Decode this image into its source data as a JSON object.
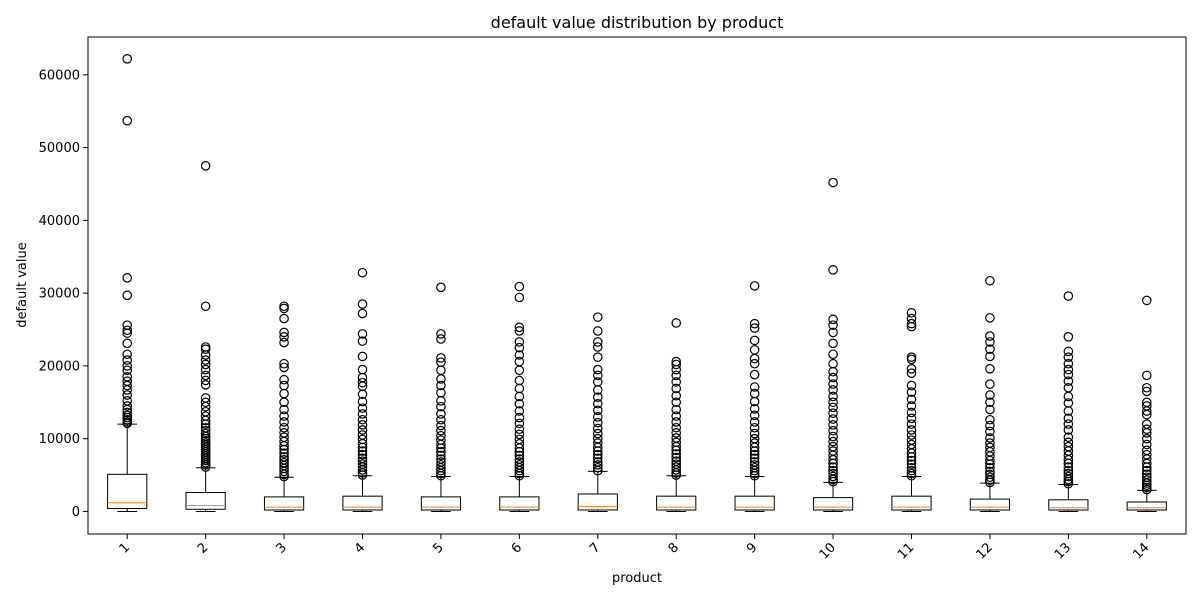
{
  "chart_data": {
    "type": "boxplot",
    "title": "default value distribution by product",
    "xlabel": "product",
    "ylabel": "default value",
    "ylim": [
      -3100,
      65200
    ],
    "yticks": [
      0,
      10000,
      20000,
      30000,
      40000,
      50000,
      60000
    ],
    "categories": [
      "1",
      "2",
      "3",
      "4",
      "5",
      "6",
      "7",
      "8",
      "9",
      "10",
      "11",
      "12",
      "13",
      "14"
    ],
    "colors": {
      "box": "#000000",
      "median": "#ff7f0e",
      "flier": "#000000"
    },
    "boxes": [
      {
        "category": "1",
        "min": 0,
        "q1": 400,
        "median": 1200,
        "q3": 5100,
        "max": 12000,
        "outliers": [
          12100,
          12300,
          12600,
          12900,
          13200,
          13600,
          14000,
          14500,
          15200,
          16000,
          16700,
          17300,
          17900,
          18500,
          19400,
          20000,
          20800,
          21600,
          23100,
          24500,
          24900,
          25600,
          29700,
          32100,
          53700,
          62200
        ]
      },
      {
        "category": "2",
        "min": 0,
        "q1": 300,
        "median": 800,
        "q3": 2600,
        "max": 6000,
        "outliers": [
          6100,
          6400,
          6700,
          7000,
          7300,
          7600,
          7900,
          8200,
          8500,
          8800,
          9100,
          9400,
          9700,
          10000,
          10300,
          10700,
          11100,
          11500,
          12000,
          12500,
          13100,
          13700,
          14400,
          15000,
          15600,
          17400,
          18000,
          18700,
          19500,
          20200,
          20800,
          21500,
          22300,
          22600,
          28200,
          47500
        ]
      },
      {
        "category": "3",
        "min": 0,
        "q1": 200,
        "median": 600,
        "q3": 2000,
        "max": 4700,
        "outliers": [
          4800,
          5100,
          5500,
          5900,
          6300,
          6700,
          7100,
          7500,
          8000,
          8500,
          9000,
          9600,
          10200,
          10800,
          11500,
          12300,
          13100,
          14000,
          15000,
          16200,
          17300,
          18100,
          19800,
          20300,
          23200,
          24000,
          24600,
          26500,
          27900,
          28200
        ]
      },
      {
        "category": "4",
        "min": 0,
        "q1": 200,
        "median": 600,
        "q3": 2100,
        "max": 4900,
        "outliers": [
          5000,
          5300,
          5700,
          6100,
          6500,
          6900,
          7300,
          7800,
          8300,
          8800,
          9300,
          9900,
          10500,
          11200,
          11900,
          12600,
          13400,
          14200,
          15100,
          16100,
          17200,
          17700,
          18400,
          19500,
          21300,
          23400,
          24400,
          27200,
          28500,
          32800
        ]
      },
      {
        "category": "5",
        "min": 0,
        "q1": 200,
        "median": 600,
        "q3": 2000,
        "max": 4800,
        "outliers": [
          4900,
          5200,
          5600,
          6000,
          6400,
          6800,
          7200,
          7700,
          8200,
          8700,
          9200,
          9800,
          10400,
          11100,
          11800,
          12600,
          13400,
          14400,
          15200,
          16300,
          17300,
          18200,
          19400,
          20500,
          21100,
          23700,
          24400,
          30800
        ]
      },
      {
        "category": "6",
        "min": 0,
        "q1": 200,
        "median": 600,
        "q3": 2000,
        "max": 4800,
        "outliers": [
          4900,
          5200,
          5600,
          6000,
          6400,
          6800,
          7200,
          7700,
          8200,
          8700,
          9300,
          9900,
          10600,
          11300,
          12100,
          12900,
          13800,
          14800,
          15800,
          16900,
          18000,
          19400,
          20600,
          21500,
          22500,
          23300,
          24800,
          25300,
          29400,
          30900
        ]
      },
      {
        "category": "7",
        "min": 0,
        "q1": 200,
        "median": 700,
        "q3": 2400,
        "max": 5500,
        "outliers": [
          5600,
          6000,
          6400,
          6800,
          7300,
          7800,
          8300,
          8800,
          9400,
          10000,
          10700,
          11400,
          12200,
          13000,
          13900,
          14800,
          15700,
          16700,
          17800,
          18700,
          19500,
          21200,
          22600,
          23300,
          24800,
          26700
        ]
      },
      {
        "category": "8",
        "min": 0,
        "q1": 200,
        "median": 600,
        "q3": 2100,
        "max": 4900,
        "outliers": [
          5000,
          5300,
          5700,
          6100,
          6500,
          6900,
          7400,
          7900,
          8400,
          8900,
          9500,
          10100,
          10800,
          11500,
          12300,
          13100,
          14000,
          15000,
          15900,
          16900,
          17800,
          18700,
          19500,
          20200,
          20600,
          25900
        ]
      },
      {
        "category": "9",
        "min": 0,
        "q1": 200,
        "median": 600,
        "q3": 2100,
        "max": 4800,
        "outliers": [
          4900,
          5200,
          5600,
          6000,
          6400,
          6800,
          7300,
          7800,
          8300,
          8800,
          9400,
          10000,
          10700,
          11500,
          12300,
          13200,
          14100,
          15100,
          16200,
          17100,
          18800,
          20300,
          21000,
          22200,
          23500,
          25200,
          25800,
          31000
        ]
      },
      {
        "category": "10",
        "min": 0,
        "q1": 200,
        "median": 600,
        "q3": 1900,
        "max": 4000,
        "outliers": [
          4100,
          4400,
          4800,
          5200,
          5600,
          6100,
          6600,
          7100,
          7700,
          8300,
          8900,
          9600,
          10300,
          11100,
          11900,
          12700,
          13500,
          14300,
          15000,
          15800,
          16700,
          17500,
          18400,
          19200,
          20300,
          21600,
          23100,
          24600,
          25600,
          26400,
          33200,
          45200
        ]
      },
      {
        "category": "11",
        "min": 0,
        "q1": 200,
        "median": 600,
        "q3": 2100,
        "max": 4800,
        "outliers": [
          4900,
          5200,
          5600,
          6000,
          6500,
          7000,
          7500,
          8000,
          8600,
          9200,
          9800,
          10500,
          11200,
          12000,
          12800,
          13600,
          14500,
          15400,
          16400,
          17300,
          19000,
          19600,
          20900,
          21200,
          25400,
          25800,
          26500,
          27300
        ]
      },
      {
        "category": "12",
        "min": 0,
        "q1": 200,
        "median": 600,
        "q3": 1700,
        "max": 3900,
        "outliers": [
          4000,
          4300,
          4700,
          5100,
          5500,
          6000,
          6500,
          7000,
          7600,
          8200,
          8800,
          9400,
          10100,
          11000,
          11800,
          12600,
          14000,
          15000,
          16000,
          17500,
          19600,
          21300,
          22300,
          23300,
          24100,
          26600,
          31700
        ]
      },
      {
        "category": "13",
        "min": 0,
        "q1": 200,
        "median": 500,
        "q3": 1600,
        "max": 3700,
        "outliers": [
          3800,
          4100,
          4400,
          4800,
          5200,
          5600,
          6100,
          6600,
          7100,
          7700,
          8300,
          8900,
          9500,
          10200,
          11200,
          12000,
          12800,
          13800,
          14900,
          15800,
          17000,
          17900,
          18800,
          19500,
          20300,
          21200,
          22000,
          24000,
          29600
        ]
      },
      {
        "category": "14",
        "min": 0,
        "q1": 200,
        "median": 500,
        "q3": 1300,
        "max": 2900,
        "outliers": [
          3000,
          3300,
          3600,
          3900,
          4300,
          4700,
          5100,
          5600,
          6100,
          6600,
          7200,
          7800,
          8400,
          9200,
          10000,
          10800,
          11300,
          12000,
          13300,
          13800,
          14500,
          15000,
          16500,
          17000,
          18700,
          29000
        ]
      }
    ]
  }
}
